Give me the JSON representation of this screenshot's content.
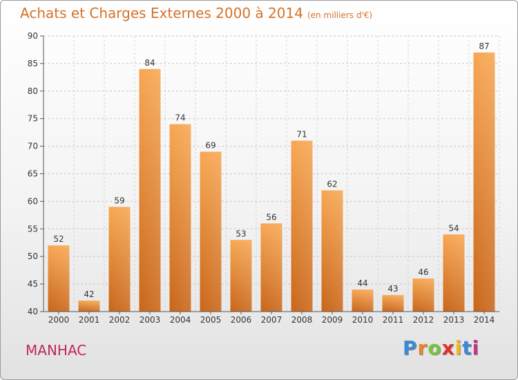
{
  "title": "Achats et Charges Externes 2000 à 2014",
  "subtitle": "(en milliers d'€)",
  "city": "MANHAC",
  "logo": {
    "letters": [
      "P",
      "r",
      "o",
      "x",
      "i",
      "t",
      "i"
    ],
    "colors": [
      "#3b8ad6",
      "#e8842a",
      "#7cc240",
      "#e0312a",
      "#f0b81a",
      "#3b8ad6",
      "#c2378c"
    ]
  },
  "colors": {
    "bar_light": "#f7a753",
    "bar_dark": "#c9661a",
    "title": "#d4722a",
    "city": "#c0265c"
  },
  "chart_data": {
    "type": "bar",
    "categories": [
      "2000",
      "2001",
      "2002",
      "2003",
      "2004",
      "2005",
      "2006",
      "2007",
      "2008",
      "2009",
      "2010",
      "2011",
      "2012",
      "2013",
      "2014"
    ],
    "values": [
      52,
      42,
      59,
      84,
      74,
      69,
      53,
      56,
      71,
      62,
      44,
      43,
      46,
      54,
      87
    ],
    "title": "Achats et Charges Externes 2000 à 2014",
    "ylim": [
      40,
      90
    ],
    "yticks": [
      40,
      45,
      50,
      55,
      60,
      65,
      70,
      75,
      80,
      85,
      90
    ],
    "grid": true,
    "legend": "none"
  }
}
